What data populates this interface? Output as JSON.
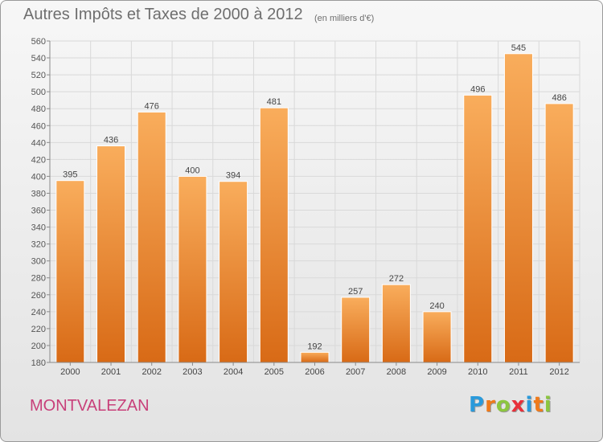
{
  "title": "Autres Impôts et Taxes de 2000 à 2012",
  "subtitle": "(en milliers d'€)",
  "commune": "MONTVALEZAN",
  "logo": {
    "letters": [
      "P",
      "r",
      "o",
      "x",
      "i",
      "t",
      "i"
    ],
    "colors": [
      "#2a9adb",
      "#f07a1a",
      "#8cc63f",
      "#e8303a",
      "#2a9adb",
      "#f07a1a",
      "#8cc63f"
    ]
  },
  "colors": {
    "bar_light": "#f9ad5c",
    "bar_dark": "#d86a16",
    "commune_text": "#c8407a",
    "text": "#6e6e6e"
  },
  "chart_data": {
    "type": "bar",
    "title": "Autres Impôts et Taxes de 2000 à 2012",
    "subtitle": "(en milliers d'€)",
    "categories": [
      "2000",
      "2001",
      "2002",
      "2003",
      "2004",
      "2005",
      "2006",
      "2007",
      "2008",
      "2009",
      "2010",
      "2011",
      "2012"
    ],
    "values": [
      395,
      436,
      476,
      400,
      394,
      481,
      192,
      257,
      272,
      240,
      496,
      545,
      486
    ],
    "ylim": [
      180,
      560
    ],
    "ytick_step": 20,
    "grid": true,
    "data_labels": true
  }
}
